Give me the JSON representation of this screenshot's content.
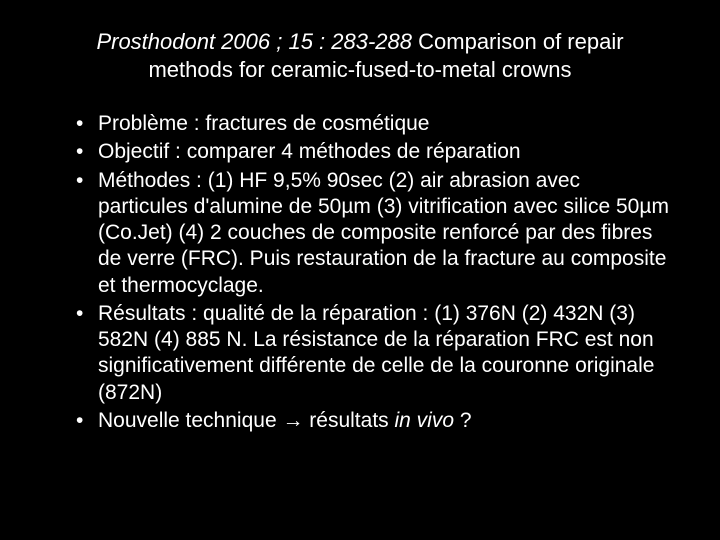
{
  "slide": {
    "background_color": "#000000",
    "text_color": "#ffffff",
    "font_family": "Arial",
    "title": {
      "citation_italic": "Prosthodont 2006 ; 15 : 283-288",
      "title_rest": "  Comparison of repair methods for ceramic-fused-to-metal crowns",
      "fontsize": 22
    },
    "bullets": [
      {
        "text": "Problème : fractures de cosmétique"
      },
      {
        "text": "Objectif : comparer 4 méthodes de réparation"
      },
      {
        "text": "Méthodes : (1) HF 9,5% 90sec (2) air abrasion avec particules d'alumine  de 50µm  (3) vitrification avec silice 50µm (Co.Jet)  (4) 2 couches de composite renforcé par des fibres de verre (FRC). Puis restauration de la fracture au composite et thermocyclage."
      },
      {
        "text": "Résultats : qualité de la réparation : (1) 376N (2) 432N (3) 582N (4) 885 N. La résistance de la réparation FRC est non significativement différente de celle de la couronne originale (872N)"
      },
      {
        "text_prefix": "Nouvelle technique → résultats ",
        "text_italic": "in vivo",
        "text_suffix": " ?"
      }
    ],
    "bullet_fontsize": 21
  }
}
